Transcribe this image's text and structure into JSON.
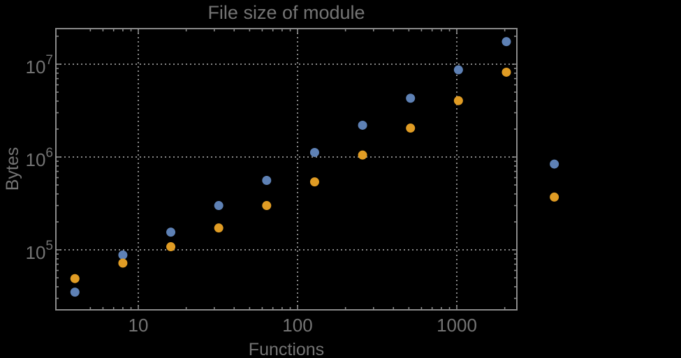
{
  "chart_data": {
    "type": "scatter",
    "title": "File size of module",
    "xlabel": "Functions",
    "ylabel": "Bytes",
    "x_scale": "log",
    "y_scale": "log",
    "xlim": [
      3.05,
      2380
    ],
    "ylim": [
      22500,
      24000000
    ],
    "grid": "dotted major-decade gridlines, both axes",
    "legend": "none",
    "x": [
      4,
      8,
      16,
      32,
      64,
      128,
      256,
      512,
      1024,
      2048,
      4096
    ],
    "series": [
      {
        "name": "series-1-blue",
        "color": "#5e81b5",
        "values": [
          35000,
          88000,
          155000,
          300000,
          560000,
          1120000,
          2200000,
          4300000,
          8700000,
          17500000,
          840000
        ]
      },
      {
        "name": "series-2-orange",
        "color": "#e09c24",
        "values": [
          49000,
          72000,
          108000,
          172000,
          300000,
          540000,
          1050000,
          2050000,
          4050000,
          8200000,
          370000
        ]
      }
    ],
    "x_ticks": [
      {
        "value": 10,
        "label": "10"
      },
      {
        "value": 100,
        "label": "100"
      },
      {
        "value": 1000,
        "label": "1000"
      }
    ],
    "y_ticks": [
      {
        "value": 100000,
        "base": "10",
        "exp": "5"
      },
      {
        "value": 1000000,
        "base": "10",
        "exp": "6"
      },
      {
        "value": 10000000,
        "base": "10",
        "exp": "7"
      }
    ],
    "colors": {
      "background": "#000000",
      "frame": "#8a8a8a",
      "grid": "#878787",
      "text": "#747474"
    },
    "note": "last data pair (x=4096) drawn outside right frame edge"
  }
}
